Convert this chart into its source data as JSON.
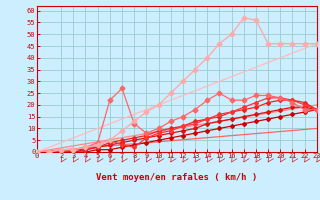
{
  "xlabel": "Vent moyen/en rafales ( km/h )",
  "bg_color": "#cceeff",
  "grid_color": "#99cccc",
  "axis_color": "#cc0000",
  "label_color": "#cc0000",
  "xlim": [
    0,
    23
  ],
  "ylim": [
    0,
    62
  ],
  "xticks": [
    0,
    2,
    3,
    4,
    5,
    6,
    7,
    8,
    9,
    10,
    11,
    12,
    13,
    14,
    15,
    16,
    17,
    18,
    19,
    20,
    21,
    22,
    23
  ],
  "yticks": [
    0,
    5,
    10,
    15,
    20,
    25,
    30,
    35,
    40,
    45,
    50,
    55,
    60
  ],
  "lines": [
    {
      "x": [
        0,
        23
      ],
      "y": [
        0,
        10
      ],
      "color": "#ff6666",
      "lw": 0.9,
      "marker": null
    },
    {
      "x": [
        0,
        23
      ],
      "y": [
        0,
        20
      ],
      "color": "#ff8888",
      "lw": 0.9,
      "marker": null
    },
    {
      "x": [
        0,
        23
      ],
      "y": [
        0,
        46
      ],
      "color": "#ffbbbb",
      "lw": 0.9,
      "marker": null
    },
    {
      "x": [
        0,
        1,
        2,
        3,
        4,
        5,
        6,
        7,
        8,
        9,
        10,
        11,
        12,
        13,
        14,
        15,
        16,
        17,
        18,
        19,
        20,
        21,
        22,
        23
      ],
      "y": [
        0,
        0,
        0,
        0,
        0,
        1,
        1,
        2,
        3,
        4,
        5,
        6,
        7,
        8,
        9,
        10,
        11,
        12,
        13,
        14,
        15,
        16,
        17,
        18
      ],
      "color": "#cc0000",
      "lw": 0.9,
      "marker": "D",
      "ms": 2.0
    },
    {
      "x": [
        0,
        1,
        2,
        3,
        4,
        5,
        6,
        7,
        8,
        9,
        10,
        11,
        12,
        13,
        14,
        15,
        16,
        17,
        18,
        19,
        20,
        21,
        22,
        23
      ],
      "y": [
        0,
        0,
        0,
        0,
        1,
        2,
        3,
        4,
        5,
        6,
        7,
        8,
        9,
        10,
        12,
        13,
        14,
        15,
        16,
        17,
        18,
        19,
        19,
        18
      ],
      "color": "#dd1111",
      "lw": 0.9,
      "marker": "D",
      "ms": 2.0
    },
    {
      "x": [
        0,
        1,
        2,
        3,
        4,
        5,
        6,
        7,
        8,
        9,
        10,
        11,
        12,
        13,
        14,
        15,
        16,
        17,
        18,
        19,
        20,
        21,
        22,
        23
      ],
      "y": [
        0,
        0,
        0,
        1,
        1,
        2,
        4,
        5,
        6,
        7,
        9,
        10,
        11,
        13,
        14,
        15,
        17,
        18,
        19,
        21,
        22,
        22,
        21,
        18
      ],
      "color": "#ee2222",
      "lw": 0.9,
      "marker": "D",
      "ms": 2.0
    },
    {
      "x": [
        0,
        1,
        2,
        3,
        4,
        5,
        6,
        7,
        8,
        9,
        10,
        11,
        12,
        13,
        14,
        15,
        16,
        17,
        18,
        19,
        20,
        21,
        22,
        23
      ],
      "y": [
        0,
        0,
        0,
        1,
        2,
        3,
        5,
        3,
        2,
        6,
        8,
        9,
        11,
        12,
        14,
        16,
        17,
        19,
        21,
        23,
        23,
        22,
        20,
        18
      ],
      "color": "#ff3333",
      "lw": 0.9,
      "marker": "D",
      "ms": 2.0
    },
    {
      "x": [
        0,
        1,
        2,
        3,
        4,
        5,
        6,
        7,
        8,
        9,
        10,
        11,
        12,
        13,
        14,
        15,
        16,
        17,
        18,
        19,
        20,
        21,
        22,
        23
      ],
      "y": [
        0,
        0,
        1,
        1,
        2,
        4,
        22,
        27,
        12,
        8,
        10,
        13,
        15,
        18,
        22,
        25,
        22,
        22,
        24,
        24,
        23,
        21,
        18,
        18
      ],
      "color": "#ff6666",
      "lw": 0.9,
      "marker": "D",
      "ms": 2.5
    },
    {
      "x": [
        0,
        1,
        2,
        3,
        4,
        5,
        6,
        7,
        8,
        9,
        10,
        11,
        12,
        13,
        14,
        15,
        16,
        17,
        18,
        19,
        20,
        21,
        22,
        23
      ],
      "y": [
        0,
        0,
        1,
        1,
        2,
        3,
        5,
        9,
        13,
        17,
        20,
        25,
        30,
        35,
        40,
        46,
        50,
        57,
        56,
        46,
        46,
        46,
        46,
        46
      ],
      "color": "#ffaaaa",
      "lw": 1.0,
      "marker": "D",
      "ms": 2.5
    }
  ],
  "arrow_color": "#cc2222"
}
